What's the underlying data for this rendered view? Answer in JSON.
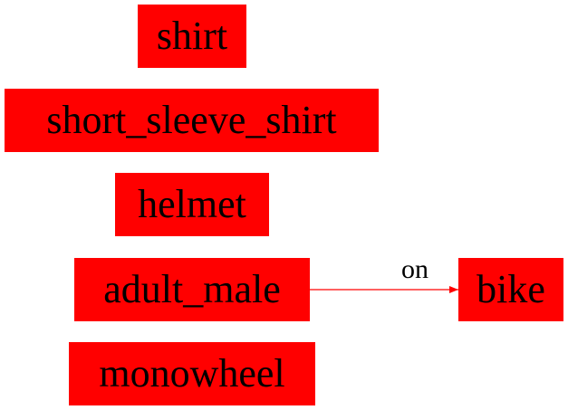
{
  "colors": {
    "node_fill": "#ff0000",
    "edge": "#ff0000",
    "text": "#000000"
  },
  "nodes": [
    {
      "id": "shirt",
      "label": "shirt"
    },
    {
      "id": "short_sleeve_shirt",
      "label": "short_sleeve_shirt"
    },
    {
      "id": "helmet",
      "label": "helmet"
    },
    {
      "id": "adult_male",
      "label": "adult_male"
    },
    {
      "id": "bike",
      "label": "bike"
    },
    {
      "id": "monowheel",
      "label": "monowheel"
    }
  ],
  "edges": [
    {
      "from": "adult_male",
      "to": "bike",
      "label": "on"
    }
  ]
}
